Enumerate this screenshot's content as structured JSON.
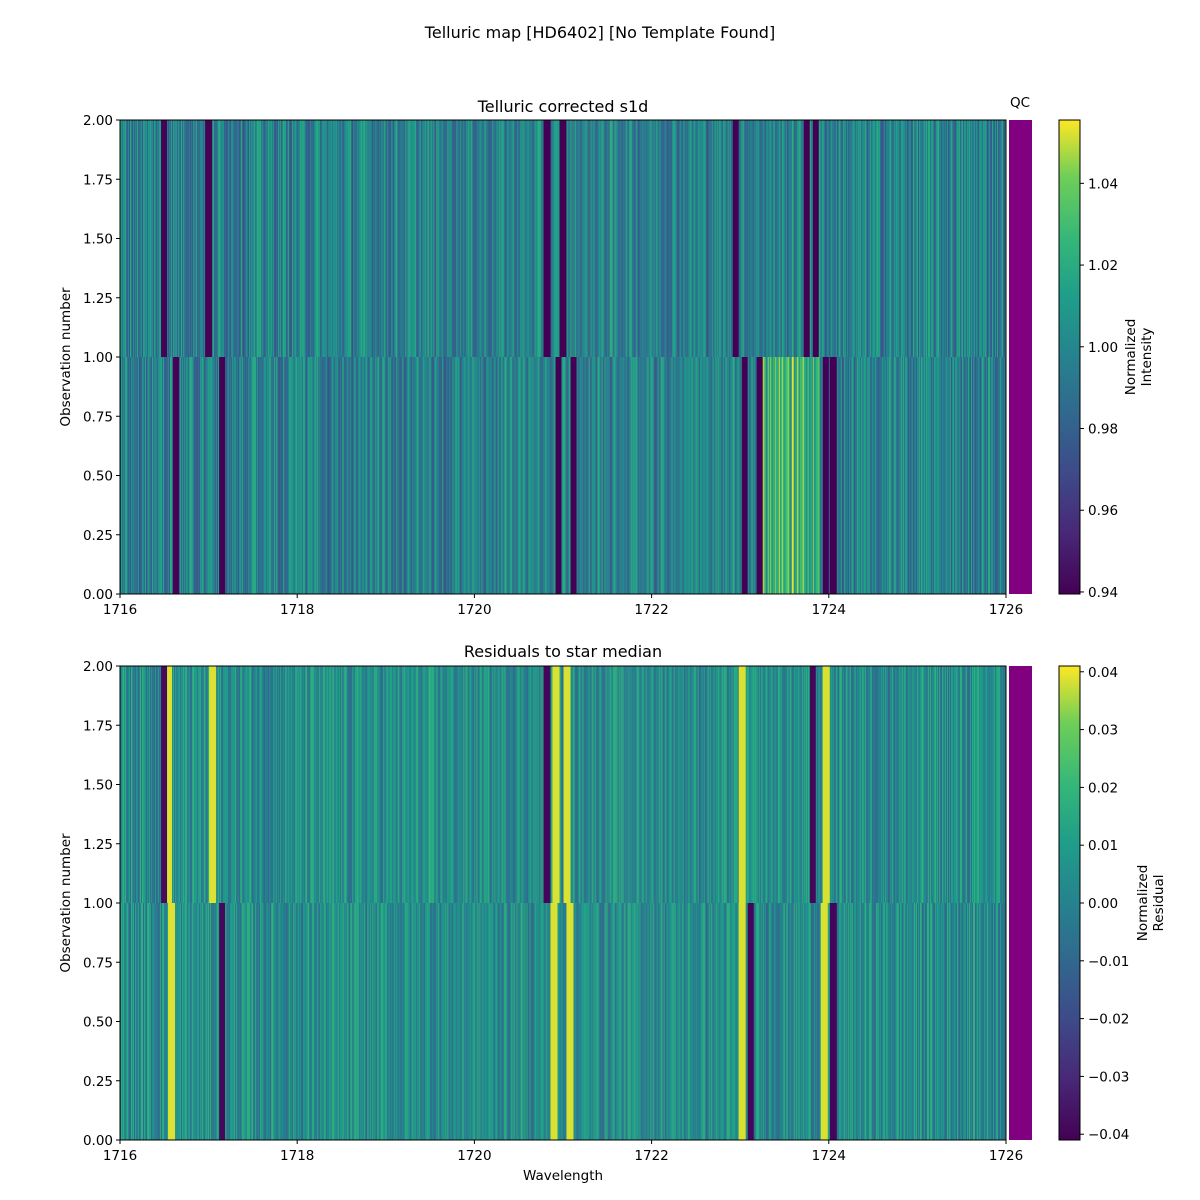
{
  "figure": {
    "suptitle": "Telluric map [HD6402] [No Template Found]"
  },
  "chart_data": [
    {
      "type": "heatmap",
      "title": "Telluric corrected s1d",
      "xlabel": "",
      "ylabel": "Observation number",
      "xlim": [
        1716,
        1726
      ],
      "ylim": [
        0,
        2
      ],
      "xticks": [
        "1716",
        "1718",
        "1720",
        "1722",
        "1724",
        "1726"
      ],
      "yticks": [
        "0.00",
        "0.25",
        "0.50",
        "0.75",
        "1.00",
        "1.25",
        "1.50",
        "1.75",
        "2.00"
      ],
      "rows": [
        {
          "y_range": [
            0,
            1
          ],
          "absorption_lines": [
            1716.63,
            1717.15,
            1720.95,
            1721.12,
            1723.05,
            1723.22,
            1723.97,
            1724.05
          ],
          "bright_regions": [
            [
              1723.25,
              1723.9
            ]
          ]
        },
        {
          "y_range": [
            1,
            2
          ],
          "absorption_lines": [
            1716.5,
            1717.0,
            1720.82,
            1721.0,
            1722.95,
            1723.75,
            1723.85
          ],
          "bright_regions": []
        }
      ],
      "qc_strip": {
        "label": "QC",
        "color": "#800080"
      },
      "colorbar": {
        "label": "Normalized\nIntensity",
        "min": 0.9395,
        "max": 1.0555,
        "ticks": [
          "0.94",
          "0.96",
          "0.98",
          "1.00",
          "1.02",
          "1.04"
        ],
        "colormap": "viridis"
      }
    },
    {
      "type": "heatmap",
      "title": "Residuals to star median",
      "xlabel": "Wavelength",
      "ylabel": "Observation number",
      "xlim": [
        1716,
        1726
      ],
      "ylim": [
        0,
        2
      ],
      "xticks": [
        "1716",
        "1718",
        "1720",
        "1722",
        "1724",
        "1726"
      ],
      "yticks": [
        "0.00",
        "0.25",
        "0.50",
        "0.75",
        "1.00",
        "1.25",
        "1.50",
        "1.75",
        "2.00"
      ],
      "rows": [
        {
          "y_range": [
            0,
            1
          ],
          "positive_lines": [
            1716.58,
            1720.9,
            1721.08,
            1723.02,
            1723.95
          ],
          "negative_lines": [
            1717.15,
            1723.12,
            1724.05
          ]
        },
        {
          "y_range": [
            1,
            2
          ],
          "positive_lines": [
            1716.55,
            1717.05,
            1720.92,
            1721.05,
            1723.02,
            1723.97
          ],
          "negative_lines": [
            1716.5,
            1720.82,
            1723.82
          ]
        }
      ],
      "qc_strip": {
        "label": "",
        "color": "#800080"
      },
      "colorbar": {
        "label": "Normalized\nResidual",
        "min": -0.041,
        "max": 0.041,
        "ticks": [
          "0.04",
          "0.03",
          "0.02",
          "0.01",
          "0.00",
          "−0.01",
          "−0.02",
          "−0.03",
          "−0.04"
        ],
        "tick_values": [
          0.04,
          0.03,
          0.02,
          0.01,
          0.0,
          -0.01,
          -0.02,
          -0.03,
          -0.04
        ],
        "colormap": "viridis"
      }
    }
  ]
}
